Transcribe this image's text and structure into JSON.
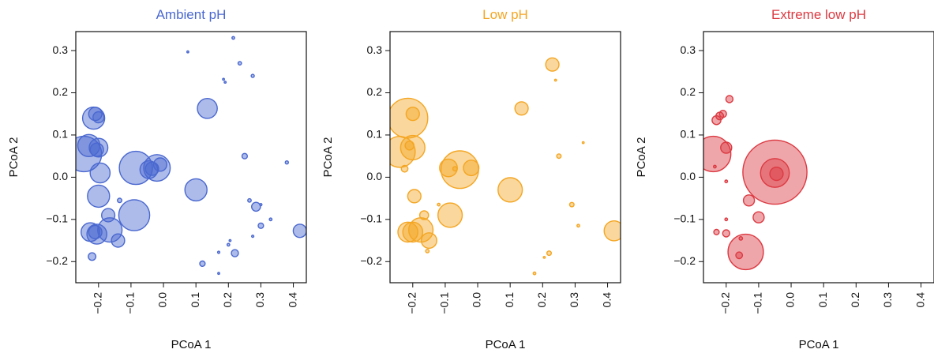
{
  "chart_data": [
    {
      "type": "scatter",
      "title": "Ambient pH",
      "color": "#4a68d0",
      "xlabel": "PCoA 1",
      "ylabel": "PCoA 2",
      "xlim": [
        -0.27,
        0.44
      ],
      "ylim": [
        -0.25,
        0.345
      ],
      "xticks": [
        -0.2,
        -0.1,
        0.0,
        0.1,
        0.2,
        0.3,
        0.4
      ],
      "xtick_labels": [
        "−0.2",
        "−0.1",
        "0.0",
        "0.1",
        "0.2",
        "0.3",
        "0.4"
      ],
      "yticks": [
        -0.2,
        -0.1,
        0.0,
        0.1,
        0.2,
        0.3
      ],
      "ytick_labels": [
        "−0.2",
        "−0.1",
        "0.0",
        "0.1",
        "0.2",
        "0.3"
      ],
      "points": [
        {
          "x": -0.245,
          "y": 0.055,
          "size": 0.8
        },
        {
          "x": -0.23,
          "y": 0.075,
          "size": 0.5
        },
        {
          "x": -0.215,
          "y": 0.14,
          "size": 0.5
        },
        {
          "x": -0.21,
          "y": 0.15,
          "size": 0.3
        },
        {
          "x": -0.2,
          "y": 0.142,
          "size": 0.25
        },
        {
          "x": -0.2,
          "y": 0.07,
          "size": 0.42
        },
        {
          "x": -0.205,
          "y": 0.065,
          "size": 0.3
        },
        {
          "x": -0.2,
          "y": -0.045,
          "size": 0.5
        },
        {
          "x": -0.195,
          "y": 0.01,
          "size": 0.45
        },
        {
          "x": -0.225,
          "y": -0.13,
          "size": 0.42
        },
        {
          "x": -0.21,
          "y": -0.13,
          "size": 0.3
        },
        {
          "x": -0.205,
          "y": -0.135,
          "size": 0.45
        },
        {
          "x": -0.17,
          "y": -0.09,
          "size": 0.3
        },
        {
          "x": -0.165,
          "y": -0.125,
          "size": 0.55
        },
        {
          "x": -0.14,
          "y": -0.15,
          "size": 0.3
        },
        {
          "x": -0.135,
          "y": -0.055,
          "size": 0.1
        },
        {
          "x": -0.22,
          "y": -0.188,
          "size": 0.17
        },
        {
          "x": -0.085,
          "y": 0.022,
          "size": 0.75
        },
        {
          "x": -0.09,
          "y": -0.09,
          "size": 0.7
        },
        {
          "x": -0.045,
          "y": 0.018,
          "size": 0.4
        },
        {
          "x": -0.035,
          "y": 0.02,
          "size": 0.3
        },
        {
          "x": -0.02,
          "y": 0.022,
          "size": 0.6
        },
        {
          "x": -0.01,
          "y": 0.03,
          "size": 0.3
        },
        {
          "x": 0.1,
          "y": -0.03,
          "size": 0.5
        },
        {
          "x": 0.135,
          "y": 0.163,
          "size": 0.45
        },
        {
          "x": 0.075,
          "y": 0.297,
          "size": 0.04
        },
        {
          "x": 0.215,
          "y": 0.33,
          "size": 0.06
        },
        {
          "x": 0.185,
          "y": 0.232,
          "size": 0.04
        },
        {
          "x": 0.19,
          "y": 0.225,
          "size": 0.03
        },
        {
          "x": 0.235,
          "y": 0.27,
          "size": 0.08
        },
        {
          "x": 0.275,
          "y": 0.24,
          "size": 0.07
        },
        {
          "x": 0.25,
          "y": 0.05,
          "size": 0.12
        },
        {
          "x": 0.38,
          "y": 0.035,
          "size": 0.07
        },
        {
          "x": 0.265,
          "y": -0.055,
          "size": 0.08
        },
        {
          "x": 0.285,
          "y": -0.07,
          "size": 0.2
        },
        {
          "x": 0.3,
          "y": -0.065,
          "size": 0.05
        },
        {
          "x": 0.3,
          "y": -0.115,
          "size": 0.12
        },
        {
          "x": 0.275,
          "y": -0.14,
          "size": 0.05
        },
        {
          "x": 0.33,
          "y": -0.1,
          "size": 0.06
        },
        {
          "x": 0.42,
          "y": -0.127,
          "size": 0.3
        },
        {
          "x": 0.2,
          "y": -0.16,
          "size": 0.06
        },
        {
          "x": 0.205,
          "y": -0.15,
          "size": 0.04
        },
        {
          "x": 0.22,
          "y": -0.18,
          "size": 0.16
        },
        {
          "x": 0.17,
          "y": -0.178,
          "size": 0.05
        },
        {
          "x": 0.12,
          "y": -0.205,
          "size": 0.12
        },
        {
          "x": 0.17,
          "y": -0.228,
          "size": 0.03
        }
      ]
    },
    {
      "type": "scatter",
      "title": "Low pH",
      "color": "#f4a623",
      "xlabel": "PCoA 1",
      "ylabel": "PCoA 2",
      "xlim": [
        -0.27,
        0.44
      ],
      "ylim": [
        -0.25,
        0.345
      ],
      "xticks": [
        -0.2,
        -0.1,
        0.0,
        0.1,
        0.2,
        0.3,
        0.4
      ],
      "xtick_labels": [
        "−0.2",
        "−0.1",
        "0.0",
        "0.1",
        "0.2",
        "0.3",
        "0.4"
      ],
      "yticks": [
        -0.2,
        -0.1,
        0.0,
        0.1,
        0.2,
        0.3
      ],
      "ytick_labels": [
        "−0.2",
        "−0.1",
        "0.0",
        "0.1",
        "0.2",
        "0.3"
      ],
      "points": [
        {
          "x": -0.215,
          "y": 0.14,
          "size": 0.9
        },
        {
          "x": -0.2,
          "y": 0.15,
          "size": 0.3
        },
        {
          "x": -0.24,
          "y": 0.06,
          "size": 0.7
        },
        {
          "x": -0.2,
          "y": 0.07,
          "size": 0.55
        },
        {
          "x": -0.21,
          "y": 0.075,
          "size": 0.2
        },
        {
          "x": -0.225,
          "y": 0.02,
          "size": 0.15
        },
        {
          "x": -0.195,
          "y": -0.045,
          "size": 0.3
        },
        {
          "x": -0.215,
          "y": -0.13,
          "size": 0.45
        },
        {
          "x": -0.2,
          "y": -0.13,
          "size": 0.45
        },
        {
          "x": -0.175,
          "y": -0.125,
          "size": 0.55
        },
        {
          "x": -0.15,
          "y": -0.15,
          "size": 0.35
        },
        {
          "x": -0.165,
          "y": -0.09,
          "size": 0.2
        },
        {
          "x": -0.12,
          "y": -0.065,
          "size": 0.06
        },
        {
          "x": -0.155,
          "y": -0.175,
          "size": 0.08
        },
        {
          "x": -0.09,
          "y": 0.022,
          "size": 0.4
        },
        {
          "x": -0.085,
          "y": -0.09,
          "size": 0.55
        },
        {
          "x": -0.055,
          "y": 0.018,
          "size": 0.85
        },
        {
          "x": -0.07,
          "y": 0.02,
          "size": 0.1
        },
        {
          "x": -0.02,
          "y": 0.022,
          "size": 0.35
        },
        {
          "x": 0.1,
          "y": -0.03,
          "size": 0.55
        },
        {
          "x": 0.135,
          "y": 0.163,
          "size": 0.3
        },
        {
          "x": 0.23,
          "y": 0.267,
          "size": 0.3
        },
        {
          "x": 0.24,
          "y": 0.23,
          "size": 0.03
        },
        {
          "x": 0.25,
          "y": 0.05,
          "size": 0.1
        },
        {
          "x": 0.325,
          "y": 0.082,
          "size": 0.04
        },
        {
          "x": 0.29,
          "y": -0.065,
          "size": 0.1
        },
        {
          "x": 0.31,
          "y": -0.115,
          "size": 0.06
        },
        {
          "x": 0.42,
          "y": -0.127,
          "size": 0.45
        },
        {
          "x": 0.22,
          "y": -0.18,
          "size": 0.1
        },
        {
          "x": 0.205,
          "y": -0.19,
          "size": 0.03
        },
        {
          "x": 0.175,
          "y": -0.228,
          "size": 0.06
        }
      ]
    },
    {
      "type": "scatter",
      "title": "Extreme low pH",
      "color": "#dc3a42",
      "xlabel": "PCoA 1",
      "ylabel": "PCoA 2",
      "xlim": [
        -0.27,
        0.44
      ],
      "ylim": [
        -0.25,
        0.345
      ],
      "xticks": [
        -0.2,
        -0.1,
        0.0,
        0.1,
        0.2,
        0.3,
        0.4
      ],
      "xtick_labels": [
        "−0.2",
        "−0.1",
        "0.0",
        "0.1",
        "0.2",
        "0.3",
        "0.4"
      ],
      "yticks": [
        -0.2,
        -0.1,
        0.0,
        0.1,
        0.2,
        0.3
      ],
      "ytick_labels": [
        "−0.2",
        "−0.1",
        "0.0",
        "0.1",
        "0.2",
        "0.3"
      ],
      "points": [
        {
          "x": -0.24,
          "y": 0.055,
          "size": 0.8
        },
        {
          "x": -0.235,
          "y": 0.025,
          "size": 0.06
        },
        {
          "x": -0.23,
          "y": 0.135,
          "size": 0.2
        },
        {
          "x": -0.22,
          "y": 0.145,
          "size": 0.17
        },
        {
          "x": -0.21,
          "y": 0.15,
          "size": 0.16
        },
        {
          "x": -0.19,
          "y": 0.185,
          "size": 0.16
        },
        {
          "x": -0.2,
          "y": 0.07,
          "size": 0.25
        },
        {
          "x": -0.2,
          "y": -0.01,
          "size": 0.06
        },
        {
          "x": -0.2,
          "y": -0.1,
          "size": 0.06
        },
        {
          "x": -0.23,
          "y": -0.13,
          "size": 0.12
        },
        {
          "x": -0.2,
          "y": -0.133,
          "size": 0.16
        },
        {
          "x": -0.155,
          "y": -0.145,
          "size": 0.08
        },
        {
          "x": -0.16,
          "y": -0.185,
          "size": 0.15
        },
        {
          "x": -0.14,
          "y": -0.177,
          "size": 0.8
        },
        {
          "x": -0.13,
          "y": -0.055,
          "size": 0.25
        },
        {
          "x": -0.1,
          "y": -0.095,
          "size": 0.25
        },
        {
          "x": -0.05,
          "y": 0.012,
          "size": 1.45
        },
        {
          "x": -0.05,
          "y": 0.01,
          "size": 0.65
        },
        {
          "x": -0.045,
          "y": 0.008,
          "size": 0.3
        }
      ]
    }
  ]
}
